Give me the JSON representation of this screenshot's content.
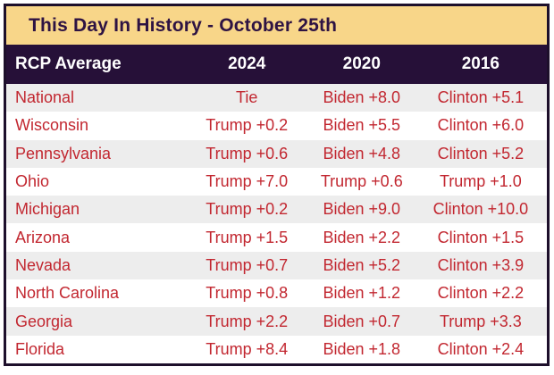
{
  "title": "This Day In History - October 25th",
  "chart_data": {
    "type": "table",
    "title": "This Day In History - October 25th",
    "columns": [
      "RCP Average",
      "2024",
      "2020",
      "2016"
    ],
    "rows": [
      [
        "National",
        "Tie",
        "Biden +8.0",
        "Clinton +5.1"
      ],
      [
        "Wisconsin",
        "Trump +0.2",
        "Biden +5.5",
        "Clinton +6.0"
      ],
      [
        "Pennsylvania",
        "Trump +0.6",
        "Biden +4.8",
        "Clinton +5.2"
      ],
      [
        "Ohio",
        "Trump +7.0",
        "Trump +0.6",
        "Trump +1.0"
      ],
      [
        "Michigan",
        "Trump +0.2",
        "Biden +9.0",
        "Clinton +10.0"
      ],
      [
        "Arizona",
        "Trump +1.5",
        "Biden +2.2",
        "Clinton +1.5"
      ],
      [
        "Nevada",
        "Trump +0.7",
        "Biden +5.2",
        "Clinton +3.9"
      ],
      [
        "North Carolina",
        "Trump +0.8",
        "Biden +1.2",
        "Clinton +2.2"
      ],
      [
        "Georgia",
        "Trump +2.2",
        "Biden +0.7",
        "Trump +3.3"
      ],
      [
        "Florida",
        "Trump +8.4",
        "Biden +1.8",
        "Clinton +2.4"
      ]
    ],
    "layout": {
      "legend": "none",
      "grid": "off",
      "row_striping": "alternating"
    }
  },
  "colors": {
    "title_bg": "#f8d689",
    "title_text": "#2e1343",
    "header_bg": "#261038",
    "header_text": "#ffffff",
    "value_text": "#c22730",
    "row_alt_bg": "#ededed",
    "frame_border": "#1d0f2b"
  }
}
